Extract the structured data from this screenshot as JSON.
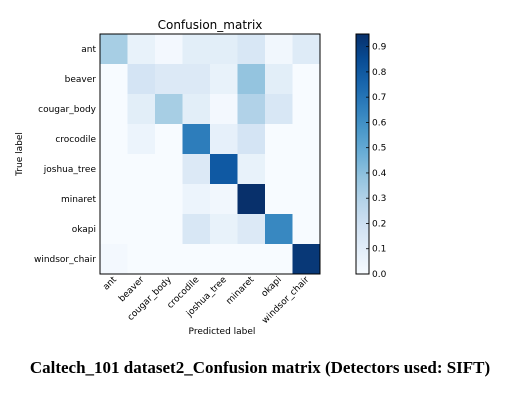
{
  "chart_data": {
    "type": "heatmap",
    "title": "Confusion_matrix",
    "xlabel": "Predicted label",
    "ylabel": "True label",
    "labels": [
      "ant",
      "beaver",
      "cougar_body",
      "crocodile",
      "joshua_tree",
      "minaret",
      "okapi",
      "windsor_chair"
    ],
    "matrix": [
      [
        0.33,
        0.07,
        0.02,
        0.1,
        0.1,
        0.15,
        0.03,
        0.12
      ],
      [
        0.0,
        0.17,
        0.13,
        0.13,
        0.07,
        0.38,
        0.1,
        0.0
      ],
      [
        0.0,
        0.1,
        0.33,
        0.1,
        0.02,
        0.3,
        0.15,
        0.0
      ],
      [
        0.0,
        0.05,
        0.0,
        0.67,
        0.08,
        0.17,
        0.0,
        0.0
      ],
      [
        0.0,
        0.0,
        0.0,
        0.13,
        0.8,
        0.07,
        0.0,
        0.0
      ],
      [
        0.0,
        0.0,
        0.0,
        0.05,
        0.03,
        0.95,
        0.0,
        0.0
      ],
      [
        0.0,
        0.0,
        0.0,
        0.15,
        0.07,
        0.13,
        0.63,
        0.0
      ],
      [
        0.02,
        0.0,
        0.0,
        0.0,
        0.0,
        0.0,
        0.0,
        0.92
      ]
    ],
    "colorbar": {
      "min": 0.0,
      "max": 0.95,
      "ticks": [
        "0.0",
        "0.1",
        "0.2",
        "0.3",
        "0.4",
        "0.5",
        "0.6",
        "0.7",
        "0.8",
        "0.9"
      ],
      "colormap": "Blues"
    }
  },
  "caption": "Caltech_101 dataset2_Confusion matrix (Detectors used: SIFT)"
}
